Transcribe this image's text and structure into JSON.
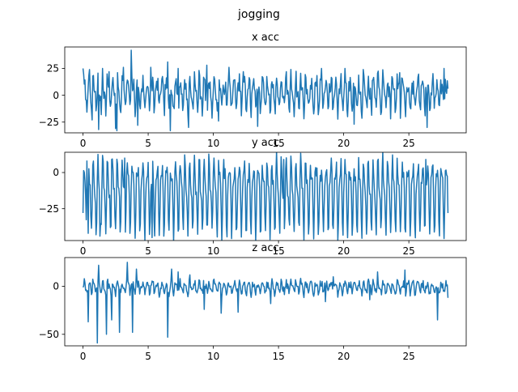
{
  "figure": {
    "suptitle": "jogging"
  },
  "colors": {
    "line": "#1f77b4",
    "axes": "#000000",
    "background": "#ffffff"
  },
  "chart_data": [
    {
      "type": "line",
      "title": "x acc",
      "xlabel": "",
      "ylabel": "",
      "xlim": [
        -1.4,
        29.4
      ],
      "ylim": [
        -35,
        45
      ],
      "xticks": [
        0,
        5,
        10,
        15,
        20,
        25
      ],
      "yticks": [
        -25,
        0,
        25
      ],
      "grid": false,
      "sampling_rate_hz": 20,
      "duration_s": 28,
      "series": [
        {
          "kind": "oscillating accelerometer trace",
          "mean": 2,
          "amplitude": 12,
          "noise": 8,
          "seed": 7,
          "extremes": [
            {
              "x": 0.0,
              "y": 25
            },
            {
              "x": 0.5,
              "y": 24
            },
            {
              "x": 0.7,
              "y": -23
            },
            {
              "x": 1.2,
              "y": -32
            },
            {
              "x": 1.5,
              "y": 25
            },
            {
              "x": 2.0,
              "y": 22
            },
            {
              "x": 2.5,
              "y": -31
            },
            {
              "x": 2.6,
              "y": -33
            },
            {
              "x": 3.1,
              "y": 26
            },
            {
              "x": 3.7,
              "y": 42
            },
            {
              "x": 4.2,
              "y": -28
            },
            {
              "x": 5.2,
              "y": 26
            },
            {
              "x": 6.5,
              "y": 31
            },
            {
              "x": 6.7,
              "y": -33
            },
            {
              "x": 7.3,
              "y": 25
            },
            {
              "x": 8.1,
              "y": -30
            },
            {
              "x": 9.5,
              "y": 28
            },
            {
              "x": 10.4,
              "y": -24
            },
            {
              "x": 11.2,
              "y": 26
            },
            {
              "x": 12.3,
              "y": 22
            },
            {
              "x": 13.4,
              "y": -29
            },
            {
              "x": 15.6,
              "y": 22
            },
            {
              "x": 16.2,
              "y": -20
            },
            {
              "x": 18.3,
              "y": 25
            },
            {
              "x": 20.1,
              "y": 25
            },
            {
              "x": 20.8,
              "y": -27
            },
            {
              "x": 21.5,
              "y": 24
            },
            {
              "x": 23.6,
              "y": -22
            },
            {
              "x": 24.3,
              "y": 21
            },
            {
              "x": 26.4,
              "y": -30
            },
            {
              "x": 27.7,
              "y": 25
            }
          ]
        }
      ]
    },
    {
      "type": "line",
      "title": "y acc",
      "xlabel": "",
      "ylabel": "",
      "xlim": [
        -1.4,
        29.4
      ],
      "ylim": [
        -47,
        14
      ],
      "xticks": [
        0,
        5,
        10,
        15,
        20,
        25
      ],
      "yticks": [
        -25,
        0
      ],
      "grid": false,
      "sampling_rate_hz": 20,
      "duration_s": 28,
      "series": [
        {
          "kind": "oscillating accelerometer trace",
          "mean": -14,
          "amplitude": 21,
          "noise": 4,
          "seed": 19,
          "extremes": [
            {
              "x": 0.0,
              "y": -28
            },
            {
              "x": 0.3,
              "y": 8
            },
            {
              "x": 0.4,
              "y": -42
            },
            {
              "x": 1.0,
              "y": -43
            },
            {
              "x": 1.3,
              "y": -44
            },
            {
              "x": 2.2,
              "y": 9
            },
            {
              "x": 3.2,
              "y": 10
            },
            {
              "x": 3.6,
              "y": -42
            },
            {
              "x": 5.3,
              "y": -45
            },
            {
              "x": 6.2,
              "y": -44
            },
            {
              "x": 10.8,
              "y": 9
            },
            {
              "x": 15.4,
              "y": 9
            },
            {
              "x": 20.1,
              "y": 9
            },
            {
              "x": 22.6,
              "y": 8
            },
            {
              "x": 26.3,
              "y": 9
            },
            {
              "x": 27.3,
              "y": -34
            },
            {
              "x": 28.0,
              "y": -28
            }
          ]
        }
      ]
    },
    {
      "type": "line",
      "title": "z acc",
      "xlabel": "",
      "ylabel": "",
      "xlim": [
        -1.4,
        29.4
      ],
      "ylim": [
        -62,
        30
      ],
      "xticks": [
        0,
        5,
        10,
        15,
        20,
        25
      ],
      "yticks": [
        -50,
        0
      ],
      "grid": false,
      "sampling_rate_hz": 20,
      "duration_s": 28,
      "series": [
        {
          "kind": "oscillating accelerometer trace",
          "mean": -1,
          "amplitude": 5,
          "noise": 4,
          "seed": 31,
          "extremes": [
            {
              "x": 0.1,
              "y": 8
            },
            {
              "x": 0.4,
              "y": -37
            },
            {
              "x": 1.1,
              "y": -59
            },
            {
              "x": 1.2,
              "y": 22
            },
            {
              "x": 1.8,
              "y": -50
            },
            {
              "x": 2.2,
              "y": -35
            },
            {
              "x": 2.8,
              "y": -48
            },
            {
              "x": 3.4,
              "y": 25
            },
            {
              "x": 3.8,
              "y": -48
            },
            {
              "x": 4.1,
              "y": 18
            },
            {
              "x": 6.5,
              "y": -53
            },
            {
              "x": 6.8,
              "y": 18
            },
            {
              "x": 7.3,
              "y": 15
            },
            {
              "x": 8.2,
              "y": 12
            },
            {
              "x": 9.3,
              "y": -24
            },
            {
              "x": 10.6,
              "y": -28
            },
            {
              "x": 11.9,
              "y": -27
            },
            {
              "x": 14.4,
              "y": -18
            },
            {
              "x": 18.6,
              "y": -16
            },
            {
              "x": 19.2,
              "y": 10
            },
            {
              "x": 22.0,
              "y": -14
            },
            {
              "x": 22.6,
              "y": 15
            },
            {
              "x": 24.7,
              "y": 17
            },
            {
              "x": 27.2,
              "y": -35
            },
            {
              "x": 28.0,
              "y": -12
            }
          ]
        }
      ]
    }
  ]
}
